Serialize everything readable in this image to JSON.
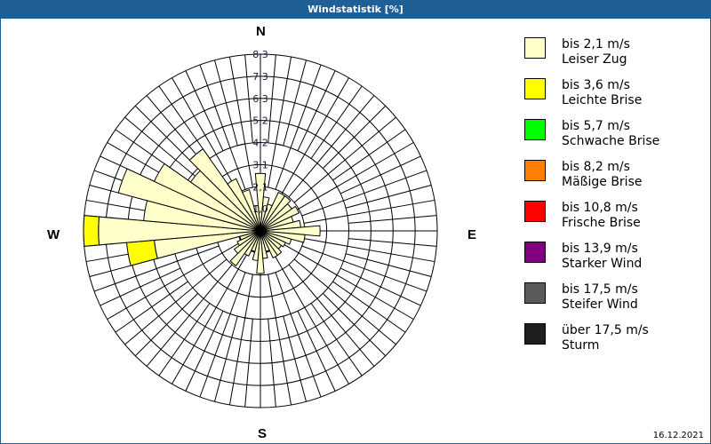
{
  "title": "Windstatistik [%]",
  "date": "16.12.2021",
  "compass": {
    "N": "N",
    "E": "E",
    "S": "S",
    "W": "W"
  },
  "ring_labels": [
    "1,0",
    "2,1",
    "3,1",
    "4,2",
    "5,2",
    "6,3",
    "7,3",
    "8,3"
  ],
  "legend": [
    {
      "range": "bis 2,1 m/s",
      "name": "Leiser Zug",
      "color": "#ffffcc"
    },
    {
      "range": "bis 3,6 m/s",
      "name": "Leichte Brise",
      "color": "#ffff00"
    },
    {
      "range": "bis 5,7 m/s",
      "name": "Schwache Brise",
      "color": "#00ff00"
    },
    {
      "range": "bis 8,2 m/s",
      "name": "Mäßige Brise",
      "color": "#ff8000"
    },
    {
      "range": "bis 10,8 m/s",
      "name": "Frische Brise",
      "color": "#ff0000"
    },
    {
      "range": "bis 13,9 m/s",
      "name": "Starker Wind",
      "color": "#800080"
    },
    {
      "range": "bis 17,5 m/s",
      "name": "Steifer Wind",
      "color": "#5a5a5a"
    },
    {
      "range": "über 17,5 m/s",
      "name": "Sturm",
      "color": "#1e1e1e"
    }
  ],
  "chart_data": {
    "type": "windrose",
    "title": "Windstatistik [%]",
    "unit": "%",
    "rmax": 8.3,
    "ring_ticks": [
      1.0,
      2.1,
      3.1,
      4.2,
      5.2,
      6.3,
      7.3,
      8.3
    ],
    "direction_step_deg": 10,
    "directions_deg": [
      0,
      10,
      20,
      30,
      40,
      50,
      60,
      70,
      80,
      90,
      100,
      110,
      120,
      130,
      140,
      150,
      160,
      170,
      180,
      190,
      200,
      210,
      220,
      230,
      240,
      250,
      260,
      270,
      280,
      290,
      300,
      310,
      320,
      330,
      340,
      350
    ],
    "series": [
      {
        "name": "bis 2,1 m/s Leiser Zug",
        "color": "#ffffcc",
        "values": [
          2.7,
          1.6,
          1.3,
          2.0,
          2.0,
          1.8,
          2.0,
          1.6,
          1.9,
          2.8,
          2.1,
          1.5,
          1.3,
          1.2,
          1.4,
          1.4,
          1.0,
          1.3,
          2.0,
          1.4,
          1.0,
          1.3,
          2.0,
          1.5,
          1.2,
          1.0,
          5.0,
          7.6,
          5.5,
          6.9,
          5.5,
          4.0,
          4.7,
          2.7,
          2.0,
          1.2
        ]
      },
      {
        "name": "bis 3,6 m/s Leichte Brise",
        "color": "#ffff00",
        "values": [
          0,
          0,
          0,
          0,
          0,
          0,
          0,
          0,
          0,
          0,
          0,
          0,
          0,
          0,
          0,
          0,
          0,
          0,
          0,
          0,
          0,
          0,
          0,
          0,
          0,
          0,
          1.3,
          0.7,
          0,
          0,
          0,
          0,
          0,
          0,
          0,
          0
        ]
      },
      {
        "name": "bis 5,7 m/s Schwache Brise",
        "color": "#00ff00",
        "values": [
          0,
          0,
          0,
          0,
          0,
          0,
          0,
          0,
          0,
          0,
          0,
          0,
          0,
          0,
          0,
          0,
          0,
          0,
          0,
          0,
          0,
          0,
          0,
          0,
          0,
          0,
          0,
          0,
          0,
          0,
          0,
          0,
          0,
          0,
          0,
          0
        ]
      },
      {
        "name": "bis 8,2 m/s Mäßige Brise",
        "color": "#ff8000",
        "values": [
          0,
          0,
          0,
          0,
          0,
          0,
          0,
          0,
          0,
          0,
          0,
          0,
          0,
          0,
          0,
          0,
          0,
          0,
          0,
          0,
          0,
          0,
          0,
          0,
          0,
          0,
          0,
          0,
          0,
          0,
          0,
          0,
          0,
          0,
          0,
          0
        ]
      },
      {
        "name": "bis 10,8 m/s Frische Brise",
        "color": "#ff0000",
        "values": [
          0,
          0,
          0,
          0,
          0,
          0,
          0,
          0,
          0,
          0,
          0,
          0,
          0,
          0,
          0,
          0,
          0,
          0,
          0,
          0,
          0,
          0,
          0,
          0,
          0,
          0,
          0,
          0,
          0,
          0,
          0,
          0,
          0,
          0,
          0,
          0
        ]
      },
      {
        "name": "bis 13,9 m/s Starker Wind",
        "color": "#800080",
        "values": [
          0,
          0,
          0,
          0,
          0,
          0,
          0,
          0,
          0,
          0,
          0,
          0,
          0,
          0,
          0,
          0,
          0,
          0,
          0,
          0,
          0,
          0,
          0,
          0,
          0,
          0,
          0,
          0,
          0,
          0,
          0,
          0,
          0,
          0,
          0,
          0
        ]
      },
      {
        "name": "bis 17,5 m/s Steifer Wind",
        "color": "#5a5a5a",
        "values": [
          0,
          0,
          0,
          0,
          0,
          0,
          0,
          0,
          0,
          0,
          0,
          0,
          0,
          0,
          0,
          0,
          0,
          0,
          0,
          0,
          0,
          0,
          0,
          0,
          0,
          0,
          0,
          0,
          0,
          0,
          0,
          0,
          0,
          0,
          0,
          0
        ]
      },
      {
        "name": "über 17,5 m/s Sturm",
        "color": "#1e1e1e",
        "values": [
          0,
          0,
          0,
          0,
          0,
          0,
          0,
          0,
          0,
          0,
          0,
          0,
          0,
          0,
          0,
          0,
          0,
          0,
          0,
          0,
          0,
          0,
          0,
          0,
          0,
          0,
          0,
          0,
          0,
          0,
          0,
          0,
          0,
          0,
          0,
          0
        ]
      }
    ],
    "legend_position": "right",
    "grid": true
  }
}
